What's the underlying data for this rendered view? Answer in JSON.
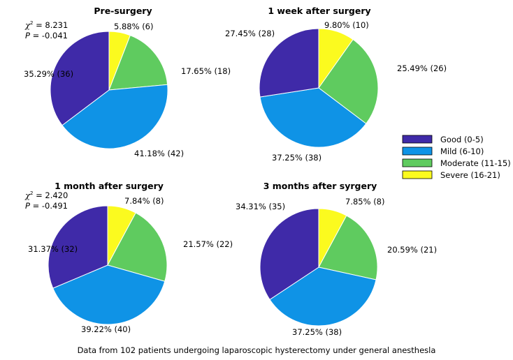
{
  "chart_data": [
    {
      "type": "pie",
      "title": "Pre-surgery",
      "series": [
        {
          "category": "Good (0-5)",
          "percent": 35.29,
          "count": 36,
          "label": "35.29% (36)"
        },
        {
          "category": "Mild (6-10)",
          "percent": 41.18,
          "count": 42,
          "label": "41.18% (42)"
        },
        {
          "category": "Moderate (11-15)",
          "percent": 17.65,
          "count": 18,
          "label": "17.65% (18)"
        },
        {
          "category": "Severe (16-21)",
          "percent": 5.88,
          "count": 6,
          "label": "5.88% (6)"
        }
      ],
      "stats": {
        "chi_symbol": "χ",
        "chi_sup": "2",
        "chi_value": " = 8.231",
        "p_symbol": "P",
        "p_value": " = -0.041"
      }
    },
    {
      "type": "pie",
      "title": "1 week after surgery",
      "series": [
        {
          "category": "Good (0-5)",
          "percent": 27.45,
          "count": 28,
          "label": "27.45% (28)"
        },
        {
          "category": "Mild (6-10)",
          "percent": 37.25,
          "count": 38,
          "label": "37.25% (38)"
        },
        {
          "category": "Moderate (11-15)",
          "percent": 25.49,
          "count": 26,
          "label": "25.49% (26)"
        },
        {
          "category": "Severe (16-21)",
          "percent": 9.8,
          "count": 10,
          "label": "9.80% (10)"
        }
      ]
    },
    {
      "type": "pie",
      "title": "1 month after surgery",
      "series": [
        {
          "category": "Good (0-5)",
          "percent": 31.37,
          "count": 32,
          "label": "31.37% (32)"
        },
        {
          "category": "Mild (6-10)",
          "percent": 39.22,
          "count": 40,
          "label": "39.22% (40)"
        },
        {
          "category": "Moderate (11-15)",
          "percent": 21.57,
          "count": 22,
          "label": "21.57% (22)"
        },
        {
          "category": "Severe (16-21)",
          "percent": 7.84,
          "count": 8,
          "label": "7.84% (8)"
        }
      ],
      "stats": {
        "chi_symbol": "χ",
        "chi_sup": "2",
        "chi_value": " = 2.420",
        "p_symbol": "P",
        "p_value": " = -0.491"
      }
    },
    {
      "type": "pie",
      "title": "3 months after syrgery",
      "series": [
        {
          "category": "Good (0-5)",
          "percent": 34.31,
          "count": 35,
          "label": "34.31% (35)"
        },
        {
          "category": "Mild (6-10)",
          "percent": 37.25,
          "count": 38,
          "label": "37.25% (38)"
        },
        {
          "category": "Moderate (11-15)",
          "percent": 20.59,
          "count": 21,
          "label": "20.59% (21)"
        },
        {
          "category": "Severe (16-21)",
          "percent": 7.85,
          "count": 8,
          "label": "7.85% (8)"
        }
      ]
    }
  ],
  "legend": {
    "placement": "right",
    "items": [
      {
        "label": "Good (0-5)",
        "color": "#3f2aa8"
      },
      {
        "label": "Mild (6-10)",
        "color": "#0f93e6"
      },
      {
        "label": "Moderate (11-15)",
        "color": "#5fcb5f"
      },
      {
        "label": "Severe (16-21)",
        "color": "#fbfa1f"
      }
    ]
  },
  "caption": "Data from 102 patients undergoing laparoscopic hysterectomy under general anesthesla"
}
